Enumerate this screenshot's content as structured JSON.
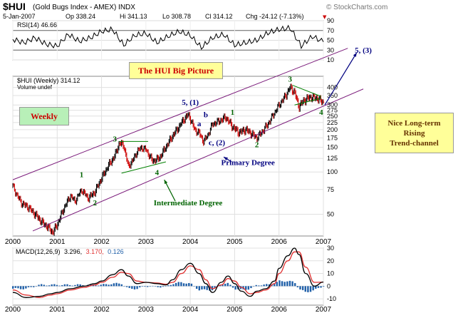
{
  "header": {
    "symbol": "$HUI",
    "name": "(Gold Bugs Index - AMEX) INDX",
    "source": "© StockCharts.com",
    "date": "5-Jan-2007",
    "op": "Op 338.24",
    "hi": "Hi 341.13",
    "lo": "Lo 308.78",
    "cl": "Cl 314.12",
    "chg": "Chg -24.12 (-7.13%)",
    "chg_marker": "▼"
  },
  "boxes": {
    "title": "The HUI Big Picture",
    "weekly": "Weekly",
    "note": [
      "Nice Long-term",
      "Rising",
      "Trend-channel"
    ]
  },
  "colors": {
    "price": "#000000",
    "up_bar": "#000000",
    "down_bar": "#cc0000",
    "rsi": "#000000",
    "macd": "#000000",
    "signal": "#e03030",
    "histogram": "#1f5fa8",
    "channel": "#7a1a7a",
    "wave_green": "#006400",
    "wave_navy": "#000080",
    "title_box_bg": "#ffff99",
    "title_text": "#cc0000",
    "weekly_box_bg": "#b8f0b8",
    "note_box_bg": "#ffff99",
    "note_text": "#663300"
  },
  "chart_data": [
    {
      "type": "line",
      "panel": "RSI",
      "legend": "RSI(14) 46.66",
      "ylim": [
        10,
        90
      ],
      "yticks": [
        10,
        30,
        50,
        70,
        90
      ],
      "reference_lines": [
        30,
        70
      ],
      "last_value": 46.66,
      "x": [
        2000.0,
        2000.25,
        2000.5,
        2000.75,
        2001.0,
        2001.25,
        2001.5,
        2001.75,
        2002.0,
        2002.25,
        2002.5,
        2002.75,
        2003.0,
        2003.25,
        2003.5,
        2003.75,
        2004.0,
        2004.25,
        2004.5,
        2004.75,
        2005.0,
        2005.25,
        2005.5,
        2005.75,
        2006.0,
        2006.25,
        2006.5,
        2006.75,
        2007.0
      ],
      "y": [
        52,
        45,
        55,
        42,
        38,
        62,
        48,
        55,
        68,
        72,
        40,
        60,
        64,
        45,
        58,
        68,
        60,
        35,
        55,
        62,
        40,
        45,
        50,
        65,
        72,
        75,
        38,
        58,
        46.66
      ]
    },
    {
      "type": "line",
      "panel": "Price",
      "legend": [
        "$HUI (Weekly) 314.12",
        "Volume undef"
      ],
      "scale": "log",
      "ylim": [
        35,
        480
      ],
      "yticks": [
        50,
        75,
        100,
        125,
        150,
        175,
        200,
        225,
        250,
        275,
        300,
        350,
        400
      ],
      "xticks": [
        "2000",
        "2001",
        "2002",
        "2003",
        "2004",
        "2005",
        "2006",
        "2007"
      ],
      "xlim": [
        2000,
        2007
      ],
      "last_value": 314.12,
      "x": [
        2000.0,
        2000.1,
        2000.2,
        2000.35,
        2000.5,
        2000.65,
        2000.8,
        2000.9,
        2001.0,
        2001.15,
        2001.3,
        2001.4,
        2001.55,
        2001.7,
        2001.85,
        2002.0,
        2002.15,
        2002.3,
        2002.4,
        2002.5,
        2002.6,
        2002.7,
        2002.8,
        2002.9,
        2003.0,
        2003.15,
        2003.3,
        2003.45,
        2003.6,
        2003.75,
        2003.85,
        2003.95,
        2004.0,
        2004.1,
        2004.2,
        2004.3,
        2004.4,
        2004.5,
        2004.65,
        2004.8,
        2004.95,
        2005.1,
        2005.25,
        2005.4,
        2005.5,
        2005.6,
        2005.75,
        2005.85,
        2006.0,
        2006.15,
        2006.25,
        2006.35,
        2006.45,
        2006.55,
        2006.7,
        2006.85,
        2007.0
      ],
      "y": [
        80,
        68,
        60,
        56,
        50,
        44,
        40,
        37,
        42,
        55,
        68,
        62,
        75,
        65,
        72,
        90,
        110,
        130,
        160,
        155,
        110,
        120,
        140,
        150,
        145,
        120,
        125,
        150,
        180,
        210,
        235,
        255,
        240,
        200,
        190,
        165,
        185,
        220,
        230,
        245,
        210,
        190,
        200,
        185,
        175,
        190,
        220,
        250,
        300,
        350,
        400,
        370,
        290,
        320,
        340,
        335,
        314.12
      ]
    },
    {
      "type": "line",
      "panel": "MACD",
      "legend": "MACD(12,26,9) 3.296, 3.170, 0.126",
      "legend_parts": [
        "MACD(12,26,9)",
        "3.296,",
        "3.170,",
        "0.126"
      ],
      "ylim": [
        -15,
        30
      ],
      "yticks": [
        -10,
        0,
        10,
        20,
        30
      ],
      "xticks": [
        "2000",
        "2001",
        "2002",
        "2003",
        "2004",
        "2005",
        "2006",
        "2007"
      ],
      "series": [
        {
          "name": "MACD",
          "x": [
            2000.0,
            2000.3,
            2000.6,
            2000.85,
            2001.0,
            2001.3,
            2001.6,
            2001.85,
            2002.0,
            2002.25,
            2002.45,
            2002.6,
            2002.8,
            2003.0,
            2003.25,
            2003.45,
            2003.6,
            2003.8,
            2004.0,
            2004.2,
            2004.35,
            2004.5,
            2004.7,
            2004.85,
            2005.0,
            2005.15,
            2005.35,
            2005.5,
            2005.7,
            2005.9,
            2006.0,
            2006.2,
            2006.35,
            2006.45,
            2006.6,
            2006.8,
            2007.0
          ],
          "y": [
            -5,
            -9,
            -8,
            -6,
            -5,
            -2,
            0,
            2,
            4,
            9,
            13,
            8,
            2,
            3,
            2,
            1,
            5,
            13,
            18,
            10,
            2,
            -5,
            3,
            8,
            2,
            -4,
            -8,
            -4,
            -2,
            4,
            14,
            24,
            30,
            25,
            10,
            0,
            3.296
          ]
        },
        {
          "name": "Signal",
          "x": [
            2000.0,
            2000.3,
            2000.6,
            2000.85,
            2001.0,
            2001.3,
            2001.6,
            2001.85,
            2002.0,
            2002.25,
            2002.45,
            2002.6,
            2002.8,
            2003.0,
            2003.25,
            2003.45,
            2003.6,
            2003.8,
            2004.0,
            2004.2,
            2004.35,
            2004.5,
            2004.7,
            2004.85,
            2005.0,
            2005.15,
            2005.35,
            2005.5,
            2005.7,
            2005.9,
            2006.0,
            2006.2,
            2006.35,
            2006.45,
            2006.6,
            2006.8,
            2007.0
          ],
          "y": [
            -3,
            -7,
            -9,
            -7,
            -6,
            -3,
            -1,
            1,
            3,
            7,
            11,
            10,
            4,
            3,
            2.5,
            1.5,
            3,
            10,
            16,
            13,
            5,
            -2,
            1,
            6,
            4,
            -1,
            -6,
            -5,
            -3,
            2,
            10,
            20,
            27,
            27,
            15,
            3,
            3.17
          ]
        },
        {
          "name": "Histogram",
          "x": [
            2000.0,
            2000.3,
            2000.6,
            2000.85,
            2001.0,
            2001.3,
            2001.6,
            2001.85,
            2002.0,
            2002.25,
            2002.45,
            2002.6,
            2002.8,
            2003.0,
            2003.25,
            2003.45,
            2003.6,
            2003.8,
            2004.0,
            2004.2,
            2004.35,
            2004.5,
            2004.7,
            2004.85,
            2005.0,
            2005.15,
            2005.35,
            2005.5,
            2005.7,
            2005.9,
            2006.0,
            2006.2,
            2006.35,
            2006.45,
            2006.6,
            2006.8,
            2007.0
          ],
          "y": [
            -2,
            -2,
            1,
            1,
            1,
            1,
            1,
            1,
            1,
            2,
            2,
            -2,
            -2,
            0,
            -0.5,
            -0.5,
            2,
            3,
            2,
            -3,
            -3,
            -3,
            2,
            2,
            -2,
            -3,
            -2,
            1,
            1,
            2,
            4,
            4,
            3,
            -2,
            -5,
            -3,
            0.126
          ]
        }
      ]
    }
  ],
  "annotations": {
    "green": [
      {
        "label": "1",
        "x": 2001.55,
        "y": 92
      },
      {
        "label": "2",
        "x": 2001.85,
        "y": 58
      },
      {
        "label": "3",
        "x": 2002.3,
        "y": 165
      },
      {
        "label": "4",
        "x": 2003.25,
        "y": 95
      },
      {
        "label": "1",
        "x": 2004.95,
        "y": 255
      },
      {
        "label": "2",
        "x": 2005.5,
        "y": 150
      },
      {
        "label": "3",
        "x": 2006.25,
        "y": 440
      },
      {
        "label": "4",
        "x": 2006.95,
        "y": 255
      },
      {
        "label": "Intermediate Degree",
        "x": 2003.95,
        "y": 58
      }
    ],
    "navy": [
      {
        "label": "5, (1)",
        "x": 2004.0,
        "y": 300
      },
      {
        "label": "b",
        "x": 2004.35,
        "y": 245
      },
      {
        "label": "a",
        "x": 2004.2,
        "y": 212
      },
      {
        "label": "c, (2)",
        "x": 2004.6,
        "y": 155
      },
      {
        "label": "Primary Degree",
        "x": 2005.3,
        "y": 112
      },
      {
        "label": "5, (3)",
        "x": 2007.9,
        "y": 570
      }
    ]
  }
}
